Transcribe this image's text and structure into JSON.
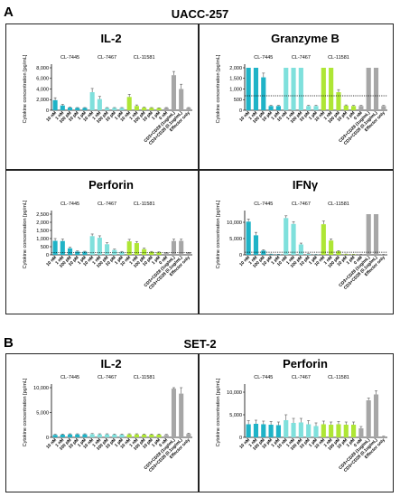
{
  "section_a": {
    "letter": "A",
    "title": "UACC-257"
  },
  "section_b": {
    "letter": "B",
    "title": "SET-2"
  },
  "colors": {
    "CL-7445": "#1fb3c7",
    "CL-7467": "#7fe0dc",
    "CL-11581": "#aee635",
    "control": "#a6a6a6"
  },
  "x_labels": [
    "10 nM",
    "1 nM",
    "100 pM",
    "10 pM",
    "1 pM",
    "10 nM",
    "1 nM",
    "100 pM",
    "10 pM",
    "1 pM",
    "10 nM",
    "1 nM",
    "100 pM",
    "10 pM",
    "1 pM",
    "0 nM",
    "CD3+CD28 (1ug/mL)",
    "CD3+CD28 (0.1ug/mL)",
    "Effector only"
  ],
  "groups": [
    "CL-7445",
    "CL-7467",
    "CL-11581"
  ],
  "ylabel": "Cytokine concentration [pg/mL]",
  "chart_data": [
    {
      "type": "bar",
      "title": "IL-2",
      "section": "A",
      "ylabel": "Cytokine concentration [pg/mL]",
      "ylim": [
        0,
        8000
      ],
      "yticks": [
        0,
        2000,
        4000,
        6000,
        8000
      ],
      "ytick_labels": [
        "0",
        "2,000",
        "4,000",
        "6,000",
        "8,000"
      ],
      "threshold": null,
      "values": [
        1900,
        900,
        500,
        450,
        450,
        3400,
        2100,
        450,
        450,
        450,
        2500,
        800,
        500,
        450,
        400,
        450,
        6600,
        4000,
        450
      ],
      "errors": [
        450,
        200,
        80,
        60,
        60,
        700,
        500,
        60,
        60,
        60,
        500,
        200,
        80,
        60,
        60,
        60,
        700,
        900,
        60
      ]
    },
    {
      "type": "bar",
      "title": "Granzyme B",
      "section": "A",
      "ylabel": "Cytokine concentration [pg/mL]",
      "ylim": [
        0,
        2000
      ],
      "yticks": [
        0,
        500,
        1000,
        1500,
        2000
      ],
      "ytick_labels": [
        "0",
        "500",
        "1,000",
        "1,500",
        "2,000"
      ],
      "threshold": 680,
      "values": [
        2000,
        2000,
        1550,
        200,
        200,
        2000,
        2000,
        2000,
        200,
        200,
        2000,
        2000,
        850,
        220,
        200,
        200,
        2000,
        2000,
        200
      ],
      "errors": [
        0,
        0,
        200,
        30,
        30,
        0,
        0,
        0,
        30,
        30,
        0,
        0,
        120,
        30,
        30,
        30,
        0,
        0,
        30
      ]
    },
    {
      "type": "bar",
      "title": "Perforin",
      "section": "A",
      "ylabel": "Cytokine concentration [pg/mL]",
      "ylim": [
        0,
        2500
      ],
      "yticks": [
        0,
        500,
        1000,
        1500,
        2000,
        2500
      ],
      "ytick_labels": [
        "0",
        "500",
        "1,000",
        "1,500",
        "2,000",
        "2,500"
      ],
      "threshold": 150,
      "values": [
        860,
        850,
        400,
        200,
        190,
        1150,
        1050,
        650,
        300,
        180,
        830,
        720,
        350,
        180,
        150,
        120,
        850,
        860,
        130
      ],
      "errors": [
        140,
        120,
        60,
        40,
        30,
        130,
        120,
        90,
        50,
        30,
        120,
        100,
        60,
        30,
        30,
        20,
        110,
        100,
        20
      ]
    },
    {
      "type": "bar",
      "title": "IFNγ",
      "section": "A",
      "ylabel": "Cytokine concentration [pg/mL]",
      "ylim": [
        0,
        12500
      ],
      "yticks": [
        0,
        5000,
        10000
      ],
      "ytick_labels": [
        "0",
        "5,000",
        "10,000"
      ],
      "threshold": 800,
      "values": [
        10200,
        6000,
        1300,
        200,
        150,
        11300,
        9500,
        3200,
        300,
        150,
        9400,
        4400,
        1100,
        200,
        150,
        150,
        12500,
        12500,
        150
      ],
      "errors": [
        800,
        900,
        250,
        40,
        30,
        700,
        700,
        400,
        50,
        30,
        1000,
        500,
        200,
        40,
        30,
        30,
        0,
        0,
        30
      ]
    },
    {
      "type": "bar",
      "title": "IL-2",
      "section": "B",
      "ylabel": "Cytokine concentration [pg/mL]",
      "ylim": [
        0,
        10000
      ],
      "yticks": [
        0,
        5000,
        10000
      ],
      "ytick_labels": [
        "0",
        "5,000",
        "10,000"
      ],
      "threshold": null,
      "values": [
        500,
        550,
        600,
        600,
        600,
        650,
        600,
        600,
        550,
        550,
        600,
        600,
        550,
        550,
        550,
        500,
        9800,
        8800,
        700
      ],
      "errors": [
        120,
        120,
        120,
        120,
        120,
        120,
        120,
        120,
        120,
        120,
        120,
        120,
        120,
        120,
        120,
        100,
        900,
        1300,
        150
      ]
    },
    {
      "type": "bar",
      "title": "Perforin",
      "section": "B",
      "ylabel": "Cytokine concentration [pg/mL]",
      "ylim": [
        0,
        11000
      ],
      "yticks": [
        0,
        5000,
        10000
      ],
      "ytick_labels": [
        "0",
        "5,000",
        "10,000"
      ],
      "threshold": null,
      "values": [
        2900,
        3000,
        2900,
        2800,
        2700,
        3800,
        3200,
        3300,
        2900,
        2500,
        2900,
        2800,
        2900,
        2800,
        2800,
        2000,
        8200,
        9500,
        200
      ],
      "errors": [
        800,
        800,
        700,
        700,
        700,
        1200,
        1000,
        900,
        800,
        700,
        700,
        600,
        600,
        600,
        600,
        400,
        500,
        800,
        50
      ]
    }
  ]
}
